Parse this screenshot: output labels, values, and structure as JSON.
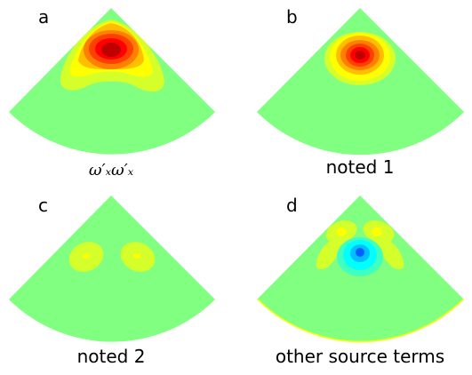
{
  "colors": {
    "background_field": "#80ff80",
    "scale": [
      "#00007f",
      "#0000ff",
      "#00bfff",
      "#00ffff",
      "#80ff80",
      "#ffff00",
      "#ff8000",
      "#ff0000",
      "#7f0000"
    ]
  },
  "chart_data": [
    {
      "type": "heatmap",
      "panel": "a",
      "caption": "ω′ₓω′ₓ",
      "shape": "sector",
      "features": [
        {
          "kind": "peak",
          "location": "upper apex-center",
          "level": 1.0,
          "sign": "positive"
        },
        {
          "kind": "lobe",
          "location": "left-lower wing",
          "level": 0.3,
          "sign": "positive"
        },
        {
          "kind": "lobe",
          "location": "right-lower wing",
          "level": 0.3,
          "sign": "positive"
        }
      ]
    },
    {
      "type": "heatmap",
      "panel": "b",
      "caption": "noted 1",
      "shape": "sector",
      "features": [
        {
          "kind": "peak",
          "location": "upper center",
          "level": 0.95,
          "sign": "positive"
        }
      ]
    },
    {
      "type": "heatmap",
      "panel": "c",
      "caption": "noted 2",
      "shape": "sector",
      "features": [
        {
          "kind": "lobe",
          "location": "left",
          "level": 0.25,
          "sign": "positive"
        },
        {
          "kind": "lobe",
          "location": "right",
          "level": 0.25,
          "sign": "positive"
        }
      ]
    },
    {
      "type": "heatmap",
      "panel": "d",
      "caption": "other source terms",
      "shape": "sector",
      "features": [
        {
          "kind": "trough",
          "location": "center",
          "level": -0.7,
          "sign": "negative"
        },
        {
          "kind": "lobe",
          "location": "upper left",
          "level": 0.3,
          "sign": "positive"
        },
        {
          "kind": "lobe",
          "location": "upper right",
          "level": 0.3,
          "sign": "positive"
        },
        {
          "kind": "lobe",
          "location": "lower left",
          "level": 0.15,
          "sign": "positive"
        },
        {
          "kind": "lobe",
          "location": "lower right",
          "level": 0.15,
          "sign": "positive"
        }
      ]
    }
  ]
}
